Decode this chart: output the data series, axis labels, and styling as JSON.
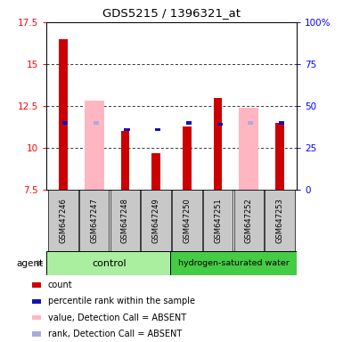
{
  "title": "GDS5215 / 1396321_at",
  "samples": [
    "GSM647246",
    "GSM647247",
    "GSM647248",
    "GSM647249",
    "GSM647250",
    "GSM647251",
    "GSM647252",
    "GSM647253"
  ],
  "ylim_left": [
    7.5,
    17.5
  ],
  "ylim_right": [
    0,
    100
  ],
  "yticks_left": [
    7.5,
    10.0,
    12.5,
    15.0,
    17.5
  ],
  "yticks_right": [
    0,
    25,
    50,
    75,
    100
  ],
  "ytick_labels_left": [
    "7.5",
    "10",
    "12.5",
    "15",
    "17.5"
  ],
  "ytick_labels_right": [
    "0",
    "25",
    "50",
    "75",
    "100%"
  ],
  "grid_lines": [
    10.0,
    12.5,
    15.0
  ],
  "red_bars": [
    16.5,
    null,
    11.0,
    9.7,
    11.3,
    13.0,
    null,
    11.5
  ],
  "pink_bars": [
    null,
    12.8,
    null,
    null,
    null,
    null,
    12.4,
    null
  ],
  "blue_sq": [
    11.5,
    null,
    11.1,
    11.1,
    11.5,
    11.4,
    null,
    11.5
  ],
  "lavender_sq": [
    null,
    11.5,
    null,
    null,
    null,
    null,
    11.5,
    null
  ],
  "bar_bottom": 7.5,
  "red_color": "#CC0000",
  "pink_color": "#FFB6C1",
  "blue_color": "#1111BB",
  "lavender_color": "#AAAADD",
  "sample_bg": "#C8C8C8",
  "control_color": "#AAEEA0",
  "treatment_color": "#44CC44",
  "legend_items": [
    {
      "color": "#CC0000",
      "label": "count"
    },
    {
      "color": "#1111BB",
      "label": "percentile rank within the sample"
    },
    {
      "color": "#FFB6C1",
      "label": "value, Detection Call = ABSENT"
    },
    {
      "color": "#AAAADD",
      "label": "rank, Detection Call = ABSENT"
    }
  ]
}
